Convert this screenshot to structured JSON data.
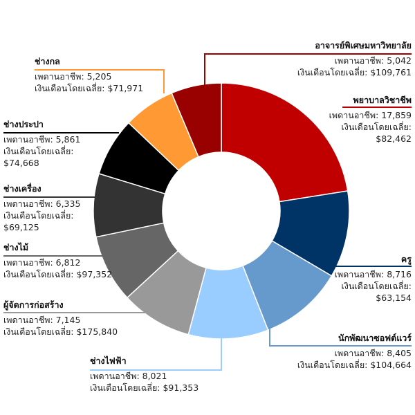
{
  "chart_data": {
    "type": "donut",
    "categories": [
      "พยาบาลวิชาชีพ",
      "ครู",
      "นักพัฒนาซอฟต์แวร์",
      "ช่างไฟฟ้า",
      "ผู้จัดการก่อสร้าง",
      "ช่างไม้",
      "ช่างเครื่อง",
      "ช่างประปา",
      "ช่างกล",
      "อาจารย์พิเศษมหาวิทยาลัย"
    ],
    "values": [
      17859,
      8716,
      8405,
      8021,
      7145,
      6812,
      6335,
      5861,
      5205,
      5042
    ],
    "value_labels": [
      "เพดานอาชีพ: 17,859",
      "เพดานอาชีพ: 8,716",
      "เพดานอาชีพ: 8,405",
      "เพดานอาชีพ: 8,021",
      "เพดานอาชีพ: 7,145",
      "เพดานอาชีพ: 6,812",
      "เพดานอาชีพ: 6,335",
      "เพดานอาชีพ: 5,861",
      "เพดานอาชีพ: 5,205",
      "เพดานอาชีพ: 5,042"
    ],
    "salary_labels": [
      "เงินเดือนโดยเฉลี่ย: $82,462",
      "เงินเดือนโดยเฉลี่ย: $63,154",
      "เงินเดือนโดยเฉลี่ย: $104,664",
      "เงินเดือนโดยเฉลี่ย: $91,353",
      "เงินเดือนโดยเฉลี่ย: $175,840",
      "เงินเดือนโดยเฉลี่ย: $97,352",
      "เงินเดือนโดยเฉลี่ย: $69,125",
      "เงินเดือนโดยเฉลี่ย: $74,668",
      "เงินเดือนโดยเฉลี่ย: $71,971",
      "เงินเดือนโดยเฉลี่ย: $109,761"
    ],
    "colors": [
      "#c00000",
      "#003366",
      "#6699cc",
      "#99ccff",
      "#999999",
      "#666666",
      "#333333",
      "#000000",
      "#ff9933",
      "#990000"
    ]
  }
}
